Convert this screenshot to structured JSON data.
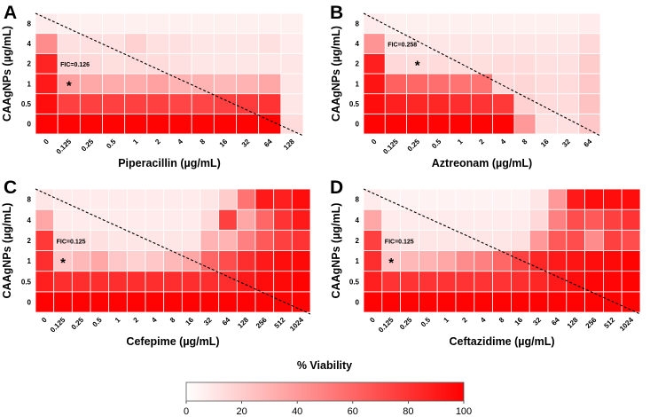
{
  "colorbar": {
    "title": "% Viability",
    "ticks": [
      "0",
      "20",
      "40",
      "60",
      "80",
      "100"
    ],
    "range": [
      0,
      100
    ],
    "low_color": "#ffffff",
    "high_color": "#ff0000"
  },
  "chart_data": [
    {
      "type": "heatmap",
      "panel": "A",
      "xlabel": "Piperacillin (µg/mL)",
      "ylabel": "CAAgNPs (µg/mL)",
      "x_ticks": [
        "0",
        "0.125",
        "0.25",
        "0.5",
        "1",
        "2",
        "4",
        "8",
        "16",
        "32",
        "64",
        "128"
      ],
      "y_ticks": [
        "0",
        "0.5",
        "1",
        "2",
        "4",
        "8"
      ],
      "values": [
        [
          99,
          99,
          99,
          99,
          99,
          99,
          99,
          99,
          99,
          99,
          99,
          14
        ],
        [
          95,
          75,
          75,
          75,
          75,
          75,
          73,
          73,
          75,
          77,
          80,
          10
        ],
        [
          90,
          37,
          34,
          33,
          33,
          37,
          30,
          30,
          28,
          30,
          35,
          10
        ],
        [
          86,
          15,
          15,
          13,
          14,
          14,
          12,
          10,
          10,
          10,
          10,
          10
        ],
        [
          45,
          12,
          12,
          12,
          18,
          12,
          12,
          10,
          10,
          10,
          12,
          8
        ],
        [
          8,
          6,
          6,
          6,
          6,
          6,
          6,
          6,
          6,
          6,
          6,
          6
        ]
      ],
      "annotation": "FIC=0.126",
      "marker": "*",
      "marker_cell": {
        "x": "0.125",
        "y": "1"
      }
    },
    {
      "type": "heatmap",
      "panel": "B",
      "xlabel": "Aztreonam (µg/mL)",
      "ylabel": "CAAgNPs (µg/mL)",
      "x_ticks": [
        "0",
        "0.125",
        "0.25",
        "0.5",
        "1",
        "2",
        "4",
        "8",
        "16",
        "32",
        "64"
      ],
      "y_ticks": [
        "0",
        "0.5",
        "1",
        "2",
        "4",
        "8"
      ],
      "values": [
        [
          99,
          99,
          99,
          99,
          99,
          99,
          99,
          40,
          12,
          12,
          22
        ],
        [
          95,
          88,
          85,
          85,
          82,
          80,
          78,
          18,
          14,
          14,
          24
        ],
        [
          92,
          62,
          60,
          57,
          55,
          55,
          15,
          16,
          14,
          14,
          22
        ],
        [
          88,
          15,
          14,
          14,
          13,
          13,
          14,
          14,
          12,
          12,
          20
        ],
        [
          42,
          10,
          10,
          10,
          10,
          10,
          10,
          10,
          10,
          10,
          15
        ],
        [
          8,
          6,
          6,
          6,
          6,
          6,
          6,
          6,
          6,
          6,
          8
        ]
      ],
      "annotation": "FIC=0.258",
      "marker": "*",
      "marker_cell": {
        "x": "0.25",
        "y": "2"
      }
    },
    {
      "type": "heatmap",
      "panel": "C",
      "xlabel": "Cefepime (µg/mL)",
      "ylabel": "CAAgNPs (µg/mL)",
      "x_ticks": [
        "0",
        "0.125",
        "0.25",
        "0.5",
        "1",
        "2",
        "4",
        "8",
        "16",
        "32",
        "64",
        "128",
        "256",
        "512",
        "1024"
      ],
      "y_ticks": [
        "0",
        "0.5",
        "1",
        "2",
        "4",
        "8"
      ],
      "values": [
        [
          99,
          99,
          99,
          99,
          99,
          99,
          99,
          99,
          99,
          99,
          99,
          99,
          99,
          99,
          99
        ],
        [
          88,
          82,
          82,
          82,
          82,
          82,
          82,
          82,
          82,
          82,
          82,
          90,
          95,
          97,
          99
        ],
        [
          82,
          22,
          28,
          35,
          22,
          18,
          22,
          28,
          35,
          60,
          70,
          82,
          90,
          95,
          97
        ],
        [
          78,
          14,
          12,
          12,
          10,
          10,
          10,
          10,
          10,
          30,
          30,
          50,
          65,
          75,
          80
        ],
        [
          35,
          8,
          8,
          8,
          8,
          8,
          8,
          8,
          8,
          15,
          75,
          35,
          60,
          80,
          90
        ],
        [
          10,
          8,
          8,
          8,
          8,
          8,
          8,
          8,
          8,
          10,
          20,
          55,
          90,
          88,
          95
        ]
      ],
      "annotation": "FIC=0.125",
      "marker": "*",
      "marker_cell": {
        "x": "0.125",
        "y": "1"
      }
    },
    {
      "type": "heatmap",
      "panel": "D",
      "xlabel": "Ceftazidime (µg/mL)",
      "ylabel": "CAAgNPs (µg/mL)",
      "x_ticks": [
        "0",
        "0.125",
        "0.25",
        "0.5",
        "1",
        "2",
        "4",
        "8",
        "16",
        "32",
        "64",
        "128",
        "256",
        "512",
        "1024"
      ],
      "y_ticks": [
        "0",
        "0.5",
        "1",
        "2",
        "4",
        "8"
      ],
      "values": [
        [
          99,
          99,
          99,
          99,
          99,
          99,
          99,
          99,
          99,
          99,
          99,
          99,
          99,
          99,
          99
        ],
        [
          88,
          80,
          80,
          80,
          80,
          80,
          80,
          80,
          82,
          85,
          90,
          95,
          98,
          98,
          99
        ],
        [
          82,
          22,
          28,
          30,
          35,
          45,
          50,
          60,
          75,
          85,
          90,
          92,
          95,
          97,
          99
        ],
        [
          75,
          12,
          10,
          10,
          10,
          10,
          10,
          10,
          12,
          40,
          65,
          70,
          45,
          75,
          70
        ],
        [
          35,
          8,
          8,
          8,
          8,
          8,
          8,
          8,
          8,
          15,
          50,
          70,
          65,
          75,
          80
        ],
        [
          8,
          5,
          5,
          5,
          5,
          5,
          5,
          5,
          5,
          10,
          40,
          90,
          95,
          95,
          95
        ]
      ],
      "annotation": "FIC=0.125",
      "marker": "*",
      "marker_cell": {
        "x": "0.125",
        "y": "1"
      }
    }
  ]
}
